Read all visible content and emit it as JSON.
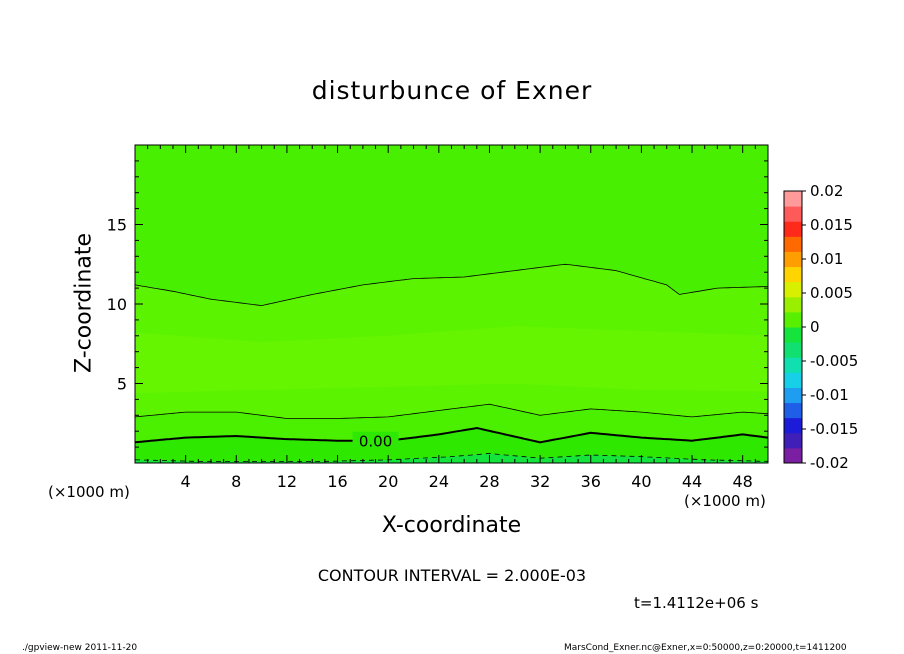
{
  "chart_data": {
    "type": "heatmap",
    "title": "disturbunce of Exner",
    "xlabel": "X-coordinate",
    "ylabel": "Z-coordinate",
    "x_unit_label": "(×1000 m)",
    "y_unit_label": "(×1000 m)",
    "xlim": [
      0,
      50
    ],
    "ylim": [
      0,
      20
    ],
    "x_ticks": [
      4,
      8,
      12,
      16,
      20,
      24,
      28,
      32,
      36,
      40,
      44,
      48
    ],
    "y_ticks": [
      5,
      10,
      15
    ],
    "colorbar": {
      "labels": [
        "0.02",
        "0.015",
        "0.01",
        "0.005",
        "0",
        "-0.005",
        "-0.01",
        "-0.015",
        "-0.02"
      ],
      "min": -0.02,
      "max": 0.02,
      "colors": [
        "#7b1fa2",
        "#3f1fb8",
        "#1c1cd8",
        "#1f5ee6",
        "#1f9df0",
        "#16d0e8",
        "#10e0b0",
        "#10e070",
        "#14e43c",
        "#58f000",
        "#9aef00",
        "#d8f000",
        "#ffd400",
        "#ff9e00",
        "#ff6a00",
        "#ff2a1a",
        "#ff5a5a",
        "#ff9a9a"
      ]
    },
    "contour_interval_label": "CONTOUR INTERVAL = 2.000E-03",
    "contours": [
      {
        "value": "-0.002",
        "x": [
          0,
          5,
          10,
          15,
          20,
          25,
          28,
          32,
          36,
          40,
          45,
          50
        ],
        "z": [
          0.2,
          0.1,
          0.1,
          0.1,
          0.2,
          0.4,
          0.6,
          0.3,
          0.5,
          0.4,
          0.2,
          0.1
        ],
        "dashed": true,
        "bold": false
      },
      {
        "value": "0.00",
        "x": [
          0,
          4,
          8,
          12,
          16,
          20,
          24,
          27,
          32,
          36,
          40,
          44,
          48,
          50
        ],
        "z": [
          1.3,
          1.6,
          1.7,
          1.5,
          1.4,
          1.4,
          1.8,
          2.2,
          1.3,
          1.9,
          1.6,
          1.4,
          1.8,
          1.6
        ],
        "dashed": false,
        "bold": true,
        "label": "0.00",
        "label_x": 17.5
      },
      {
        "value": "0.002",
        "x": [
          0,
          4,
          8,
          12,
          16,
          20,
          24,
          28,
          32,
          36,
          40,
          44,
          48,
          50
        ],
        "z": [
          2.9,
          3.2,
          3.2,
          2.8,
          2.8,
          2.9,
          3.3,
          3.7,
          3.0,
          3.4,
          3.2,
          2.9,
          3.2,
          3.1
        ],
        "dashed": false,
        "bold": false
      },
      {
        "value": "0.004",
        "x": [
          0,
          3,
          6,
          10,
          14,
          18,
          22,
          26,
          30,
          34,
          38,
          42,
          43,
          46,
          50
        ],
        "z": [
          11.2,
          10.8,
          10.3,
          9.9,
          10.6,
          11.2,
          11.6,
          11.7,
          12.1,
          12.5,
          12.1,
          11.2,
          10.6,
          11.0,
          11.1
        ],
        "dashed": false,
        "bold": false
      }
    ],
    "regions": [
      {
        "name": "band-0.000-0.002",
        "level": "0.001",
        "color": "#3fef00",
        "top": [
          1.3,
          1.6,
          1.7,
          1.5,
          1.4,
          1.4,
          1.8,
          2.2,
          1.3,
          1.9,
          1.6,
          1.4,
          1.8,
          1.6
        ],
        "bottom_flat": 0
      },
      {
        "name": "band-0.002-0.004-high",
        "level": "0.003",
        "color": "#56f200"
      },
      {
        "name": "band-0.004-0.006",
        "level": "0.005",
        "color": "#6bf400"
      },
      {
        "name": "band-below-zero",
        "level": "-0.001",
        "color": "#14e43c"
      }
    ],
    "time_label": "t=1.4112e+06 s"
  },
  "footer": {
    "left": "./gpview-new   2011-11-20",
    "right": "MarsCond_Exner.nc@Exner,x=0:50000,z=0:20000,t=1411200"
  }
}
